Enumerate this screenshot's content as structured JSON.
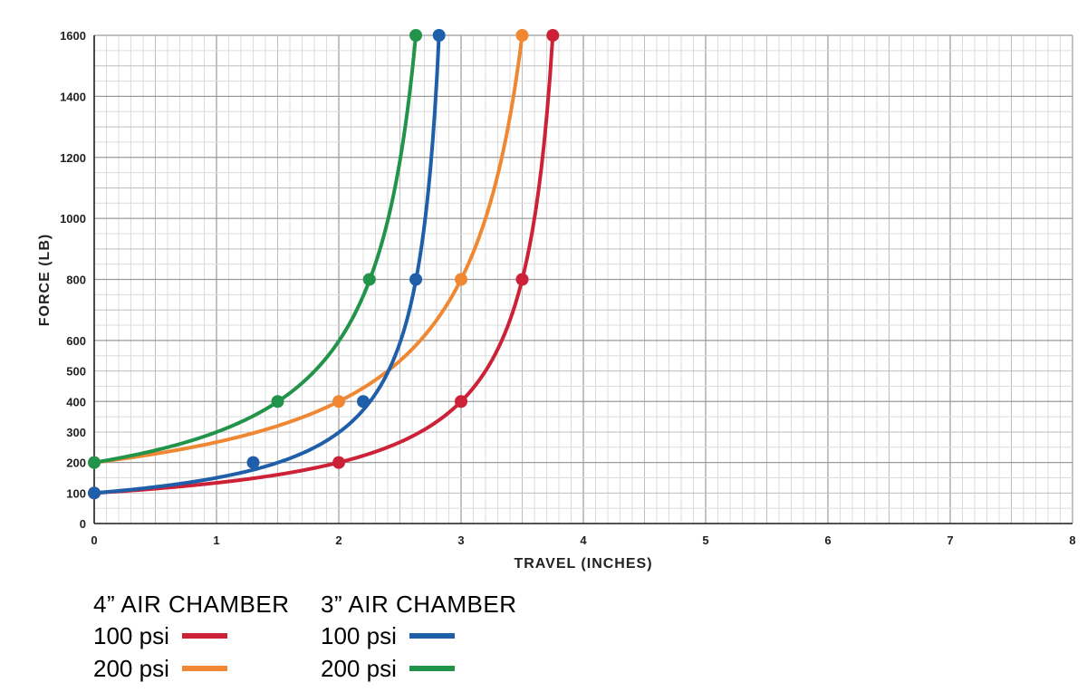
{
  "chart_data": {
    "type": "line",
    "xlabel": "TRAVEL (INCHES)",
    "ylabel": "FORCE (LB)",
    "xlim": [
      0,
      8
    ],
    "ylim": [
      0,
      1600
    ],
    "x_ticks": [
      0,
      1,
      2,
      3,
      4,
      5,
      6,
      7,
      8
    ],
    "y_ticks": [
      0,
      100,
      200,
      300,
      400,
      500,
      600,
      800,
      1000,
      1200,
      1400,
      1600
    ],
    "grid": true,
    "series": [
      {
        "group": "4” AIR CHAMBER",
        "name": "100 psi",
        "color": "#cc2136",
        "p0": 100,
        "stroke": 4,
        "points": [
          [
            0,
            100
          ],
          [
            2,
            200
          ],
          [
            3,
            400
          ],
          [
            3.5,
            800
          ],
          [
            3.75,
            1600
          ]
        ]
      },
      {
        "group": "4” AIR CHAMBER",
        "name": "200 psi",
        "color": "#ef8733",
        "p0": 200,
        "stroke": 4,
        "points": [
          [
            0,
            200
          ],
          [
            2,
            400
          ],
          [
            3,
            800
          ],
          [
            3.5,
            1600
          ]
        ]
      },
      {
        "group": "3” AIR CHAMBER",
        "name": "100 psi",
        "color": "#1f5ea8",
        "p0": 100,
        "stroke": 4,
        "points": [
          [
            0,
            100
          ],
          [
            1.3,
            200
          ],
          [
            2.2,
            400
          ],
          [
            2.63,
            800
          ],
          [
            2.82,
            1600
          ]
        ]
      },
      {
        "group": "3” AIR CHAMBER",
        "name": "200 psi",
        "color": "#22944a",
        "p0": 200,
        "stroke": 4,
        "points": [
          [
            0,
            200
          ],
          [
            1.5,
            400
          ],
          [
            2.25,
            800
          ],
          [
            2.63,
            1600
          ]
        ]
      }
    ]
  },
  "legend": {
    "groups": [
      {
        "title": "4” AIR CHAMBER",
        "items": [
          {
            "label": "100 psi",
            "color": "#cc2136"
          },
          {
            "label": "200 psi",
            "color": "#ef8733"
          }
        ]
      },
      {
        "title": "3” AIR CHAMBER",
        "items": [
          {
            "label": "100 psi",
            "color": "#1f5ea8"
          },
          {
            "label": "200 psi",
            "color": "#22944a"
          }
        ]
      }
    ]
  }
}
